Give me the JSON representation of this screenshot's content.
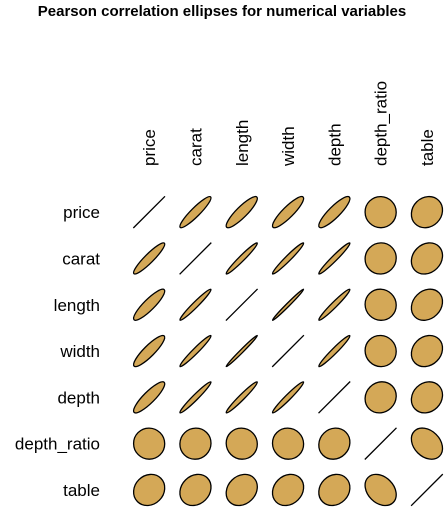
{
  "chart_data": {
    "type": "heatmap",
    "subtype": "correlation-ellipses",
    "title": "Pearson correlation ellipses for numerical variables",
    "variables": [
      "price",
      "carat",
      "length",
      "width",
      "depth",
      "depth_ratio",
      "table"
    ],
    "matrix": [
      [
        1.0,
        0.92,
        0.88,
        0.88,
        0.87,
        -0.01,
        0.13
      ],
      [
        0.92,
        1.0,
        0.97,
        0.97,
        0.97,
        0.03,
        0.18
      ],
      [
        0.88,
        0.97,
        1.0,
        0.99,
        0.97,
        -0.03,
        0.2
      ],
      [
        0.88,
        0.97,
        0.99,
        1.0,
        0.97,
        -0.03,
        0.18
      ],
      [
        0.87,
        0.97,
        0.97,
        0.97,
        1.0,
        0.09,
        0.15
      ],
      [
        -0.01,
        0.03,
        -0.03,
        -0.03,
        0.09,
        1.0,
        -0.3
      ],
      [
        0.13,
        0.18,
        0.2,
        0.18,
        0.15,
        -0.3,
        1.0
      ]
    ],
    "fill_color": "#D4A857",
    "stroke_color": "#000000",
    "diagonal": "line"
  }
}
